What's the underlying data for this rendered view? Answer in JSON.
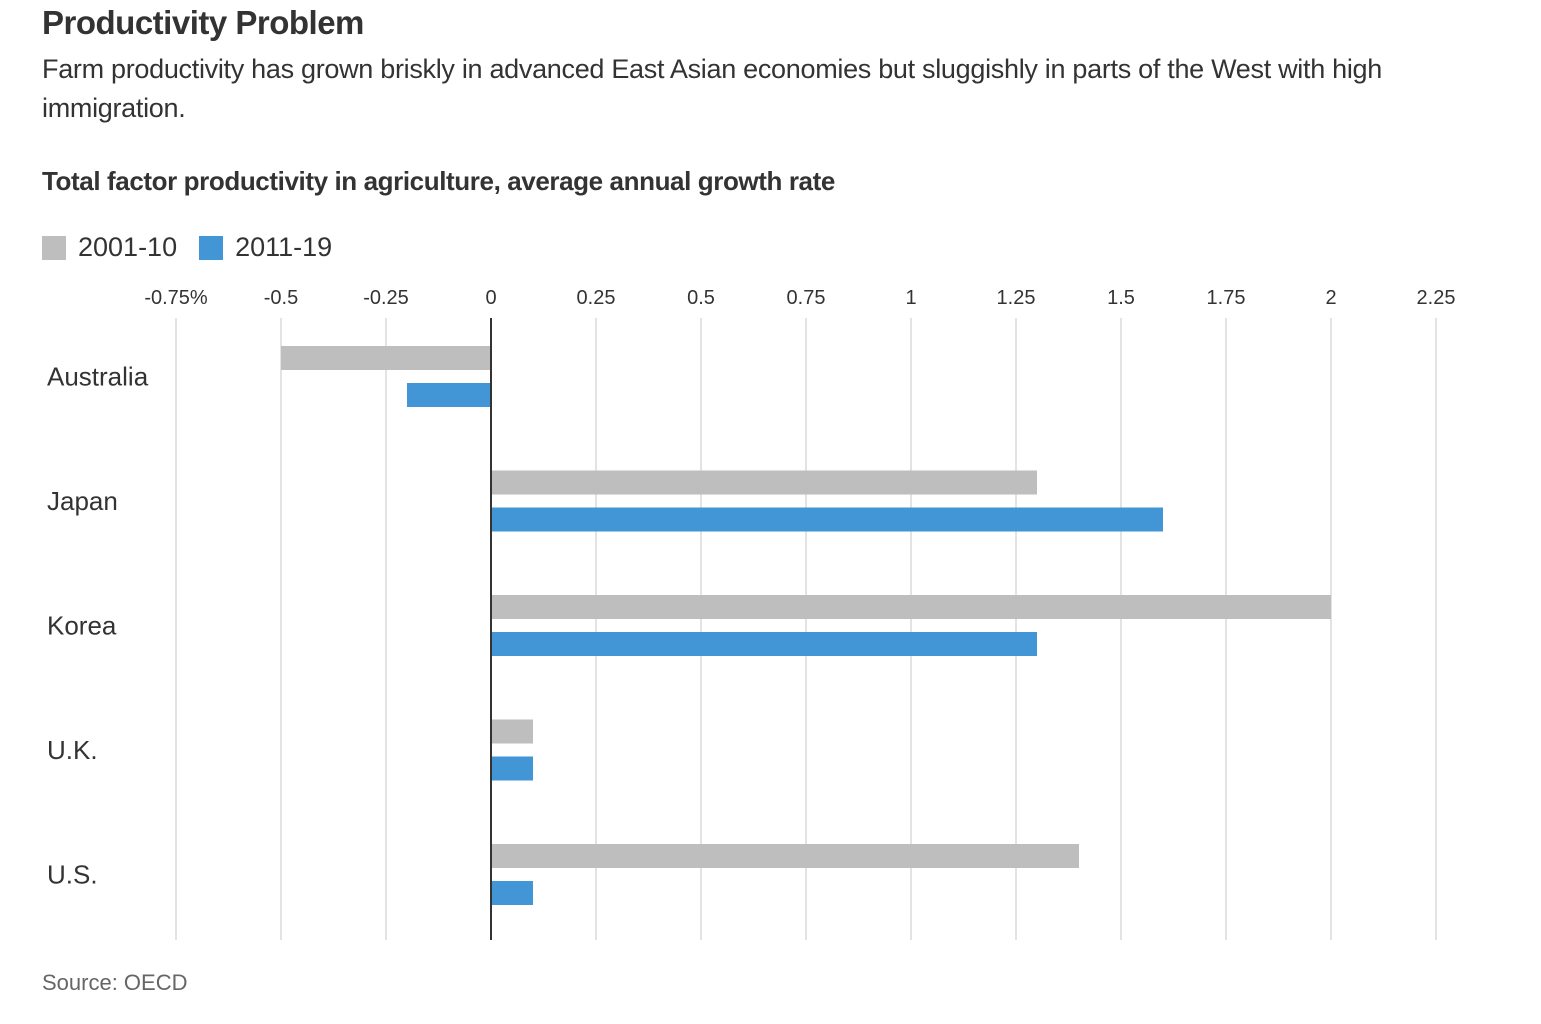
{
  "header": {
    "title": "Productivity Problem",
    "subtitle": "Farm productivity has grown briskly in advanced East Asian economies but sluggishly in parts of the West with high immigration."
  },
  "footer": {
    "source": "Source: OECD"
  },
  "chart_data": {
    "type": "bar",
    "orientation": "horizontal",
    "title": "Total factor productivity in agriculture, average annual growth rate",
    "xlabel": "",
    "ylabel": "",
    "unit": "%",
    "categories": [
      "Australia",
      "Japan",
      "Korea",
      "U.K.",
      "U.S."
    ],
    "series": [
      {
        "name": "2001-10",
        "color": "#bebebe",
        "values": [
          -0.5,
          1.3,
          2.0,
          0.1,
          1.4
        ]
      },
      {
        "name": "2011-19",
        "color": "#4296d6",
        "values": [
          -0.2,
          1.6,
          1.3,
          0.1,
          0.1
        ]
      }
    ],
    "xlim": [
      -0.75,
      2.25
    ],
    "x_ticks": [
      -0.75,
      -0.5,
      -0.25,
      0,
      0.25,
      0.5,
      0.75,
      1,
      1.25,
      1.5,
      1.75,
      2,
      2.25
    ],
    "x_tick_labels": [
      "-0.75%",
      "-0.5",
      "-0.25",
      "0",
      "0.25",
      "0.5",
      "0.75",
      "1",
      "1.25",
      "1.5",
      "1.75",
      "2",
      "2.25"
    ],
    "grid": true,
    "legend_position": "top-left"
  }
}
